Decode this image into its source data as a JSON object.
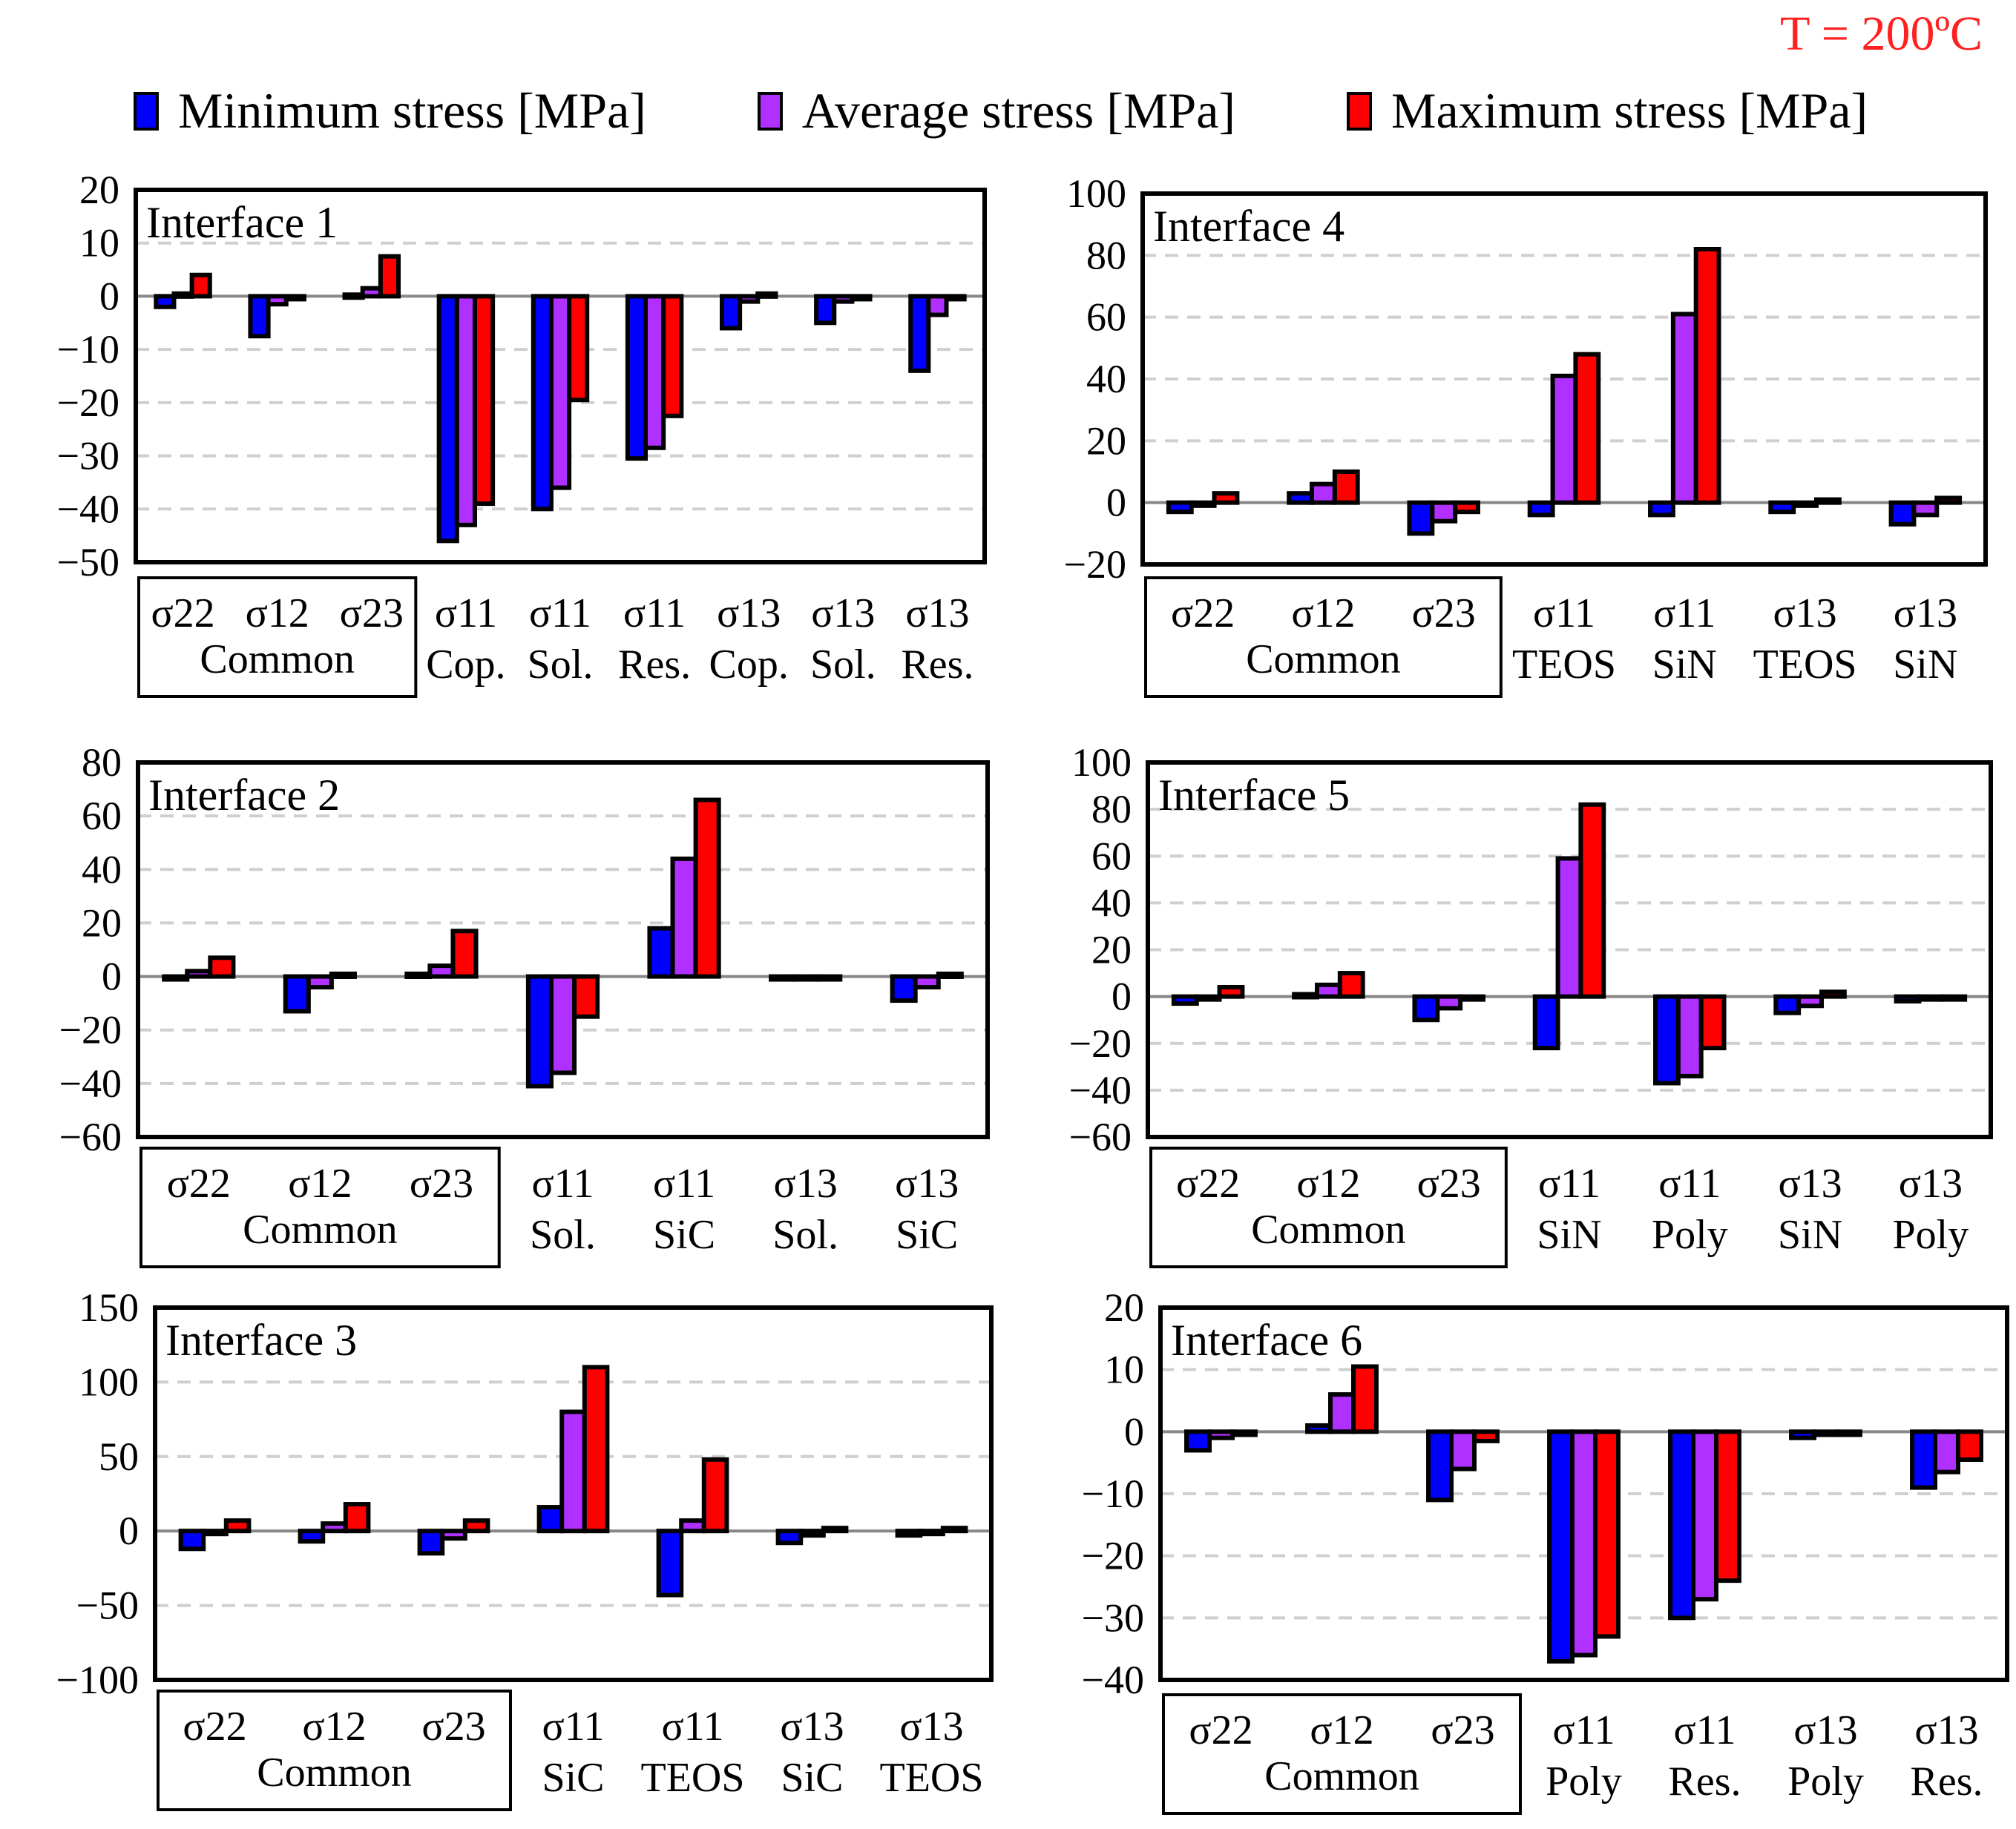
{
  "header": {
    "temperature_label": "T = 200ºC"
  },
  "colors": {
    "min": "#0000ff",
    "avg": "#b030ff",
    "max": "#ff0000"
  },
  "chart_data": [
    {
      "type": "bar",
      "title": "Interface 1",
      "ylim": [
        -50,
        20
      ],
      "yticks": [
        -50,
        -40,
        -30,
        -20,
        -10,
        0,
        10,
        20
      ],
      "categories": [
        "σ22",
        "σ12",
        "σ23",
        "σ11",
        "σ11",
        "σ11",
        "σ13",
        "σ13",
        "σ13"
      ],
      "sublabels": [
        "",
        "",
        "",
        "Cop.",
        "Sol.",
        "Res.",
        "Cop.",
        "Sol.",
        "Res."
      ],
      "group_label": "Common",
      "series": [
        {
          "name": "Minimum stress [MPa]",
          "values": [
            -2,
            -7.5,
            0.3,
            -46,
            -40,
            -30.5,
            -6,
            -5,
            -14
          ]
        },
        {
          "name": "Average stress [MPa]",
          "values": [
            0.5,
            -1.5,
            1.5,
            -43,
            -36,
            -28.5,
            -1,
            -1,
            -3.5
          ]
        },
        {
          "name": "Maximum stress [MPa]",
          "values": [
            4,
            -0.5,
            7.5,
            -39,
            -19.5,
            -22.5,
            0.5,
            -0.5,
            -0.5
          ]
        }
      ]
    },
    {
      "type": "bar",
      "title": "Interface 4",
      "ylim": [
        -20,
        100
      ],
      "yticks": [
        -20,
        0,
        20,
        40,
        60,
        80,
        100
      ],
      "categories": [
        "σ22",
        "σ12",
        "σ23",
        "σ11",
        "σ11",
        "σ13",
        "σ13"
      ],
      "sublabels": [
        "",
        "",
        "",
        "TEOS",
        "SiN",
        "TEOS",
        "SiN"
      ],
      "group_label": "Common",
      "series": [
        {
          "name": "Minimum stress [MPa]",
          "values": [
            -3,
            3,
            -10,
            -4,
            -4,
            -3,
            -7
          ]
        },
        {
          "name": "Average stress [MPa]",
          "values": [
            -1,
            6,
            -6,
            41,
            61,
            -1,
            -4
          ]
        },
        {
          "name": "Maximum stress [MPa]",
          "values": [
            3,
            10,
            -3,
            48,
            82,
            1,
            1.5
          ]
        }
      ]
    },
    {
      "type": "bar",
      "title": "Interface 2",
      "ylim": [
        -60,
        80
      ],
      "yticks": [
        -60,
        -40,
        -20,
        0,
        20,
        40,
        60,
        80
      ],
      "categories": [
        "σ22",
        "σ12",
        "σ23",
        "σ11",
        "σ11",
        "σ13",
        "σ13"
      ],
      "sublabels": [
        "",
        "",
        "",
        "Sol.",
        "SiC",
        "Sol.",
        "SiC"
      ],
      "group_label": "Common",
      "series": [
        {
          "name": "Minimum stress [MPa]",
          "values": [
            -1,
            -13,
            1,
            -41,
            18,
            -1,
            -9
          ]
        },
        {
          "name": "Average stress [MPa]",
          "values": [
            2,
            -4,
            4,
            -36,
            44,
            -1,
            -4
          ]
        },
        {
          "name": "Maximum stress [MPa]",
          "values": [
            7,
            1,
            17,
            -15,
            66,
            -1,
            1
          ]
        }
      ]
    },
    {
      "type": "bar",
      "title": "Interface 5",
      "ylim": [
        -60,
        100
      ],
      "yticks": [
        -60,
        -40,
        -20,
        0,
        20,
        40,
        60,
        80,
        100
      ],
      "categories": [
        "σ22",
        "σ12",
        "σ23",
        "σ11",
        "σ11",
        "σ13",
        "σ13"
      ],
      "sublabels": [
        "",
        "",
        "",
        "SiN",
        "Poly",
        "SiN",
        "Poly"
      ],
      "group_label": "Common",
      "series": [
        {
          "name": "Minimum stress [MPa]",
          "values": [
            -3,
            1,
            -10,
            -22,
            -37,
            -7,
            -2
          ]
        },
        {
          "name": "Average stress [MPa]",
          "values": [
            -1,
            5,
            -5,
            59,
            -34,
            -4,
            -1
          ]
        },
        {
          "name": "Maximum stress [MPa]",
          "values": [
            4,
            10,
            -1,
            82,
            -22,
            2,
            -1
          ]
        }
      ]
    },
    {
      "type": "bar",
      "title": "Interface 3",
      "ylim": [
        -100,
        150
      ],
      "yticks": [
        -100,
        -50,
        0,
        50,
        100,
        150
      ],
      "categories": [
        "σ22",
        "σ12",
        "σ23",
        "σ11",
        "σ11",
        "σ13",
        "σ13"
      ],
      "sublabels": [
        "",
        "",
        "",
        "SiC",
        "TEOS",
        "SiC",
        "TEOS"
      ],
      "group_label": "Common",
      "series": [
        {
          "name": "Minimum stress [MPa]",
          "values": [
            -12,
            -7,
            -15,
            16,
            -43,
            -8,
            -3
          ]
        },
        {
          "name": "Average stress [MPa]",
          "values": [
            -2,
            5,
            -5,
            80,
            7,
            -3,
            -1
          ]
        },
        {
          "name": "Maximum stress [MPa]",
          "values": [
            7,
            18,
            7,
            110,
            48,
            2,
            2
          ]
        }
      ]
    },
    {
      "type": "bar",
      "title": "Interface 6",
      "ylim": [
        -40,
        20
      ],
      "yticks": [
        -40,
        -30,
        -20,
        -10,
        0,
        10,
        20
      ],
      "categories": [
        "σ22",
        "σ12",
        "σ23",
        "σ11",
        "σ11",
        "σ13",
        "σ13"
      ],
      "sublabels": [
        "",
        "",
        "",
        "Poly",
        "Res.",
        "Poly",
        "Res."
      ],
      "group_label": "Common",
      "series": [
        {
          "name": "Minimum stress [MPa]",
          "values": [
            -3,
            1,
            -11,
            -37,
            -30,
            -1,
            -9
          ]
        },
        {
          "name": "Average stress [MPa]",
          "values": [
            -1,
            6,
            -6,
            -36,
            -27,
            -0.5,
            -6.5
          ]
        },
        {
          "name": "Maximum stress [MPa]",
          "values": [
            -0.5,
            10.5,
            -1.5,
            -33,
            -24,
            -0.5,
            -4.5
          ]
        }
      ]
    }
  ],
  "legend": [
    {
      "label": "Minimum stress [MPa]"
    },
    {
      "label": "Average stress [MPa]"
    },
    {
      "label": "Maximum stress [MPa]"
    }
  ]
}
